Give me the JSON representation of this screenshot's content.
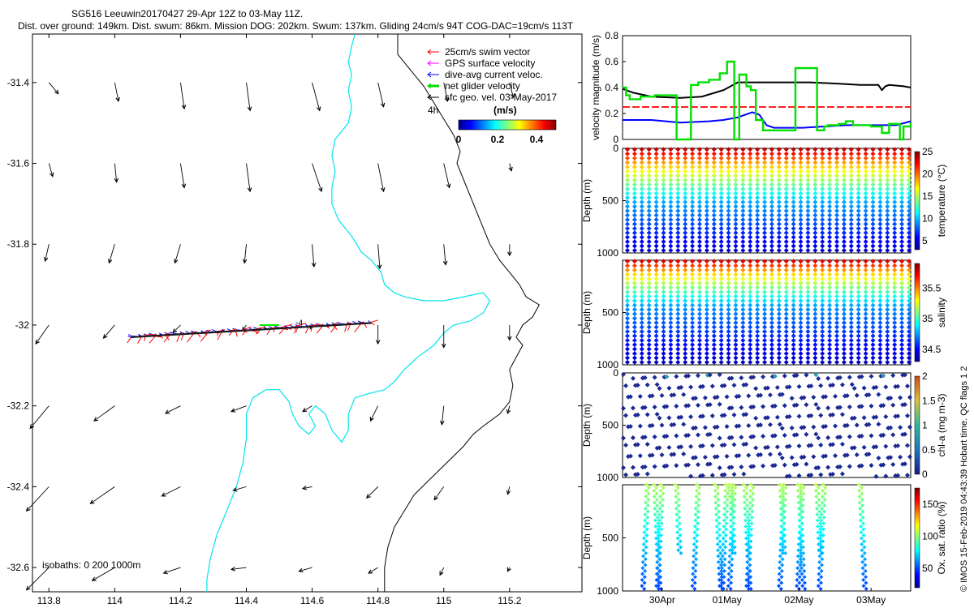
{
  "header": {
    "title": "SG516 Leeuwin20170427 29-Apr 12Z to 03-May 11Z.",
    "subtitle": "Dist. over ground: 149km. Dist. swum: 86km. Mission DOG: 202km. Swum: 137km. Gliding 24cm/s 94T COG-DAC=19cm/s 113T"
  },
  "credit": "© IMOS 15-Feb-2019 04:43:39 Hobart time. QC flags 1  2",
  "colors": {
    "swim": "#ff0000",
    "gps": "#ff00ff",
    "dac": "#0000ff",
    "net": "#00ee00",
    "sfc": "#000000",
    "isobath_200": "#00e5ee",
    "isobath_1000": "#000000"
  },
  "chart_data": [
    {
      "id": "map",
      "type": "quiver-map",
      "xlim": [
        113.75,
        115.42
      ],
      "ylim": [
        -32.66,
        -31.28
      ],
      "xticks": [
        "113.8",
        "114",
        "114.2",
        "114.4",
        "114.6",
        "114.8",
        "115",
        "115.2"
      ],
      "yticks": [
        "-31.4",
        "-31.6",
        "-31.8",
        "-32",
        "-32.2",
        "-32.4",
        "-32.6"
      ],
      "legend": {
        "position": "top-right",
        "items": [
          {
            "label": "25cm/s swim vector",
            "color": "#ff0000",
            "width": 1
          },
          {
            "label": "GPS surface velocity",
            "color": "#ff00ff",
            "width": 1
          },
          {
            "label": "dive-avg current veloc.",
            "color": "#0000ff",
            "width": 1
          },
          {
            "label": "net glider velocity",
            "color": "#00dd00",
            "width": 3
          },
          {
            "label": "sfc geo. vel. 03-May-2017",
            "color": "#000000",
            "width": 1
          }
        ],
        "interval": "4h",
        "colorbar_label": "(m/s)",
        "colorbar_ticks": [
          "0",
          "0.2",
          "0.4"
        ]
      },
      "isobaths_label": "isobaths: 0   200  1000m",
      "sfc_vectors": [
        {
          "lon": 113.8,
          "lat": -31.4,
          "u": 0.05,
          "v": -0.06
        },
        {
          "lon": 114.0,
          "lat": -31.4,
          "u": 0.02,
          "v": -0.1
        },
        {
          "lon": 114.2,
          "lat": -31.4,
          "u": 0.02,
          "v": -0.14
        },
        {
          "lon": 114.4,
          "lat": -31.4,
          "u": 0.02,
          "v": -0.15
        },
        {
          "lon": 114.6,
          "lat": -31.4,
          "u": 0.04,
          "v": -0.15
        },
        {
          "lon": 114.8,
          "lat": -31.4,
          "u": 0.03,
          "v": -0.13
        },
        {
          "lon": 115.0,
          "lat": -31.4,
          "u": 0.02,
          "v": -0.1
        },
        {
          "lon": 115.2,
          "lat": -31.4,
          "u": 0.02,
          "v": -0.08
        },
        {
          "lon": 113.8,
          "lat": -31.6,
          "u": 0.02,
          "v": -0.07
        },
        {
          "lon": 114.0,
          "lat": -31.6,
          "u": 0.01,
          "v": -0.1
        },
        {
          "lon": 114.2,
          "lat": -31.6,
          "u": 0.02,
          "v": -0.13
        },
        {
          "lon": 114.4,
          "lat": -31.6,
          "u": 0.02,
          "v": -0.15
        },
        {
          "lon": 114.6,
          "lat": -31.6,
          "u": 0.05,
          "v": -0.15
        },
        {
          "lon": 114.8,
          "lat": -31.6,
          "u": 0.03,
          "v": -0.15
        },
        {
          "lon": 115.0,
          "lat": -31.6,
          "u": 0.03,
          "v": -0.13
        },
        {
          "lon": 115.2,
          "lat": -31.6,
          "u": 0.01,
          "v": -0.04
        },
        {
          "lon": 113.8,
          "lat": -31.8,
          "u": -0.02,
          "v": -0.09
        },
        {
          "lon": 114.0,
          "lat": -31.8,
          "u": -0.03,
          "v": -0.1
        },
        {
          "lon": 114.2,
          "lat": -31.8,
          "u": -0.03,
          "v": -0.1
        },
        {
          "lon": 114.4,
          "lat": -31.8,
          "u": -0.01,
          "v": -0.1
        },
        {
          "lon": 114.6,
          "lat": -31.8,
          "u": 0.01,
          "v": -0.12
        },
        {
          "lon": 114.8,
          "lat": -31.8,
          "u": 0.01,
          "v": -0.13
        },
        {
          "lon": 115.0,
          "lat": -31.8,
          "u": 0.01,
          "v": -0.11
        },
        {
          "lon": 115.2,
          "lat": -31.8,
          "u": 0.0,
          "v": -0.06
        },
        {
          "lon": 113.8,
          "lat": -32.0,
          "u": -0.07,
          "v": -0.1
        },
        {
          "lon": 114.0,
          "lat": -32.0,
          "u": -0.06,
          "v": -0.07
        },
        {
          "lon": 114.2,
          "lat": -32.0,
          "u": -0.04,
          "v": -0.04
        },
        {
          "lon": 114.4,
          "lat": -32.0,
          "u": -0.02,
          "v": -0.03
        },
        {
          "lon": 114.6,
          "lat": -32.0,
          "u": -0.01,
          "v": -0.02
        },
        {
          "lon": 114.8,
          "lat": -32.0,
          "u": 0.0,
          "v": -0.1
        },
        {
          "lon": 115.0,
          "lat": -32.0,
          "u": 0.0,
          "v": -0.12
        },
        {
          "lon": 115.2,
          "lat": -32.0,
          "u": 0.0,
          "v": -0.08
        },
        {
          "lon": 113.8,
          "lat": -32.2,
          "u": -0.1,
          "v": -0.12
        },
        {
          "lon": 114.0,
          "lat": -32.2,
          "u": -0.11,
          "v": -0.08
        },
        {
          "lon": 114.2,
          "lat": -32.2,
          "u": -0.08,
          "v": -0.04
        },
        {
          "lon": 114.4,
          "lat": -32.2,
          "u": -0.08,
          "v": -0.03
        },
        {
          "lon": 114.6,
          "lat": -32.2,
          "u": -0.05,
          "v": -0.03
        },
        {
          "lon": 114.8,
          "lat": -32.2,
          "u": -0.04,
          "v": -0.08
        },
        {
          "lon": 115.0,
          "lat": -32.2,
          "u": -0.01,
          "v": -0.1
        },
        {
          "lon": 115.2,
          "lat": -32.2,
          "u": -0.01,
          "v": -0.04
        },
        {
          "lon": 113.8,
          "lat": -32.4,
          "u": -0.12,
          "v": -0.13
        },
        {
          "lon": 114.0,
          "lat": -32.4,
          "u": -0.13,
          "v": -0.09
        },
        {
          "lon": 114.2,
          "lat": -32.4,
          "u": -0.1,
          "v": -0.05
        },
        {
          "lon": 114.4,
          "lat": -32.4,
          "u": -0.07,
          "v": -0.02
        },
        {
          "lon": 114.6,
          "lat": -32.4,
          "u": -0.05,
          "v": -0.01
        },
        {
          "lon": 114.8,
          "lat": -32.4,
          "u": -0.06,
          "v": -0.06
        },
        {
          "lon": 115.0,
          "lat": -32.4,
          "u": -0.05,
          "v": -0.07
        },
        {
          "lon": 115.2,
          "lat": -32.4,
          "u": -0.01,
          "v": -0.04
        },
        {
          "lon": 113.8,
          "lat": -32.6,
          "u": -0.12,
          "v": -0.12
        },
        {
          "lon": 114.0,
          "lat": -32.6,
          "u": -0.12,
          "v": -0.07
        },
        {
          "lon": 114.2,
          "lat": -32.6,
          "u": -0.09,
          "v": -0.03
        },
        {
          "lon": 114.4,
          "lat": -32.6,
          "u": -0.08,
          "v": -0.01
        },
        {
          "lon": 114.6,
          "lat": -32.6,
          "u": -0.07,
          "v": -0.02
        },
        {
          "lon": 114.8,
          "lat": -32.6,
          "u": -0.05,
          "v": -0.03
        },
        {
          "lon": 115.0,
          "lat": -32.6,
          "u": -0.02,
          "v": -0.04
        },
        {
          "lon": 115.2,
          "lat": -32.6,
          "u": -0.01,
          "v": -0.02
        }
      ],
      "track": {
        "start_lon": 114.78,
        "end_lon": 114.05,
        "lat_start": -31.995,
        "lat_end": -32.03,
        "label": "-4"
      },
      "isobath_200": [
        [
          114.73,
          -31.28
        ],
        [
          114.72,
          -31.31
        ],
        [
          114.71,
          -31.35
        ],
        [
          114.72,
          -31.38
        ],
        [
          114.71,
          -31.42
        ],
        [
          114.72,
          -31.46
        ],
        [
          114.71,
          -31.5
        ],
        [
          114.67,
          -31.54
        ],
        [
          114.66,
          -31.58
        ],
        [
          114.67,
          -31.62
        ],
        [
          114.66,
          -31.66
        ],
        [
          114.66,
          -31.7
        ],
        [
          114.68,
          -31.74
        ],
        [
          114.72,
          -31.78
        ],
        [
          114.75,
          -31.82
        ],
        [
          114.78,
          -31.84
        ],
        [
          114.81,
          -31.87
        ],
        [
          114.82,
          -31.9
        ],
        [
          114.85,
          -31.92
        ],
        [
          114.88,
          -31.93
        ],
        [
          114.94,
          -31.94
        ],
        [
          115.0,
          -31.94
        ],
        [
          115.06,
          -31.93
        ],
        [
          115.12,
          -31.92
        ],
        [
          115.14,
          -31.94
        ],
        [
          115.12,
          -31.97
        ],
        [
          115.08,
          -31.99
        ],
        [
          115.03,
          -32.0
        ],
        [
          115.0,
          -32.02
        ],
        [
          114.97,
          -32.05
        ],
        [
          114.92,
          -32.08
        ],
        [
          114.88,
          -32.11
        ],
        [
          114.85,
          -32.14
        ],
        [
          114.82,
          -32.16
        ],
        [
          114.77,
          -32.17
        ],
        [
          114.73,
          -32.18
        ],
        [
          114.71,
          -32.22
        ],
        [
          114.71,
          -32.26
        ],
        [
          114.69,
          -32.29
        ],
        [
          114.66,
          -32.26
        ],
        [
          114.64,
          -32.22
        ],
        [
          114.61,
          -32.2
        ],
        [
          114.59,
          -32.22
        ],
        [
          114.61,
          -32.25
        ],
        [
          114.59,
          -32.27
        ],
        [
          114.56,
          -32.25
        ],
        [
          114.54,
          -32.22
        ],
        [
          114.53,
          -32.19
        ],
        [
          114.5,
          -32.16
        ],
        [
          114.46,
          -32.16
        ],
        [
          114.42,
          -32.18
        ],
        [
          114.4,
          -32.22
        ],
        [
          114.4,
          -32.28
        ],
        [
          114.39,
          -32.34
        ],
        [
          114.37,
          -32.4
        ],
        [
          114.34,
          -32.46
        ],
        [
          114.31,
          -32.52
        ],
        [
          114.29,
          -32.58
        ],
        [
          114.28,
          -32.63
        ],
        [
          114.28,
          -32.66
        ]
      ],
      "isobath_1000": [
        [
          114.86,
          -31.28
        ],
        [
          114.86,
          -31.33
        ],
        [
          114.9,
          -31.37
        ],
        [
          114.94,
          -31.41
        ],
        [
          114.97,
          -31.45
        ],
        [
          115.0,
          -31.49
        ],
        [
          115.03,
          -31.53
        ],
        [
          115.05,
          -31.57
        ],
        [
          115.04,
          -31.6
        ],
        [
          115.06,
          -31.64
        ],
        [
          115.08,
          -31.68
        ],
        [
          115.1,
          -31.72
        ],
        [
          115.12,
          -31.76
        ],
        [
          115.14,
          -31.8
        ],
        [
          115.17,
          -31.84
        ],
        [
          115.2,
          -31.87
        ],
        [
          115.23,
          -31.9
        ],
        [
          115.25,
          -31.93
        ],
        [
          115.29,
          -31.95
        ],
        [
          115.27,
          -31.98
        ],
        [
          115.24,
          -32.0
        ],
        [
          115.22,
          -32.03
        ],
        [
          115.24,
          -32.05
        ],
        [
          115.22,
          -32.08
        ],
        [
          115.2,
          -32.11
        ],
        [
          115.21,
          -32.15
        ],
        [
          115.2,
          -32.19
        ],
        [
          115.17,
          -32.22
        ],
        [
          115.12,
          -32.25
        ],
        [
          115.09,
          -32.27
        ],
        [
          115.06,
          -32.3
        ],
        [
          115.01,
          -32.34
        ],
        [
          114.96,
          -32.38
        ],
        [
          114.91,
          -32.42
        ],
        [
          114.88,
          -32.46
        ],
        [
          114.85,
          -32.5
        ],
        [
          114.83,
          -32.55
        ],
        [
          114.82,
          -32.6
        ],
        [
          114.82,
          -32.66
        ]
      ]
    },
    {
      "id": "velocity",
      "type": "line",
      "ylabel": "velocity magnitude (m/s)",
      "ylim": [
        0,
        0.8
      ],
      "yticks": [
        "0",
        "0.2",
        "0.4",
        "0.6",
        "0.8"
      ],
      "x_days": [
        0,
        4.0
      ],
      "series": [
        {
          "name": "sfc geo. vel.",
          "color": "#000000",
          "x": [
            0,
            0.15,
            0.4,
            0.8,
            1.1,
            1.4,
            1.6,
            1.8,
            2.2,
            2.6,
            3.0,
            3.3,
            3.55,
            3.6,
            3.65,
            3.7,
            3.9,
            4.0
          ],
          "y": [
            0.39,
            0.36,
            0.33,
            0.32,
            0.33,
            0.38,
            0.44,
            0.44,
            0.44,
            0.44,
            0.43,
            0.42,
            0.42,
            0.38,
            0.41,
            0.42,
            0.41,
            0.4
          ]
        },
        {
          "name": "dive-avg current veloc.",
          "color": "#0000ff",
          "x": [
            0,
            0.4,
            0.8,
            1.2,
            1.4,
            1.6,
            1.8,
            1.9,
            2.0,
            2.1,
            2.5,
            2.8,
            3.1,
            3.5,
            3.8,
            4.0
          ],
          "y": [
            0.15,
            0.15,
            0.13,
            0.14,
            0.15,
            0.17,
            0.21,
            0.19,
            0.11,
            0.09,
            0.09,
            0.1,
            0.11,
            0.11,
            0.11,
            0.14
          ]
        },
        {
          "name": "25cm/s swim vector",
          "color": "#ff0000",
          "dashed": true,
          "x": [
            0,
            4.0
          ],
          "y": [
            0.25,
            0.25
          ]
        },
        {
          "name": "net glider velocity",
          "color": "#00e000",
          "step": true,
          "x": [
            0,
            0.05,
            0.1,
            0.25,
            0.45,
            0.75,
            0.95,
            1.05,
            1.2,
            1.35,
            1.45,
            1.55,
            1.62,
            1.72,
            1.78,
            1.85,
            1.95,
            2.0,
            2.2,
            2.4,
            2.7,
            2.8,
            2.85,
            3.0,
            3.1,
            3.2,
            3.3,
            3.45,
            3.6,
            3.7,
            3.8,
            3.85,
            3.9,
            4.0
          ],
          "y": [
            0.4,
            0.34,
            0.31,
            0.33,
            0.34,
            0.0,
            0.42,
            0.44,
            0.46,
            0.51,
            0.6,
            0.0,
            0.5,
            0.41,
            0.38,
            0.15,
            0.07,
            0.07,
            0.07,
            0.55,
            0.07,
            0.1,
            0.11,
            0.12,
            0.14,
            0.11,
            0.11,
            0.1,
            0.05,
            0.12,
            0.12,
            0.0,
            0.1,
            0.13
          ]
        }
      ]
    },
    {
      "id": "temperature",
      "type": "scatter",
      "ylabel": "Depth (m)",
      "clabel": "temperature (°C)",
      "ylim": [
        1000,
        0
      ],
      "yticks": [
        "0",
        "500",
        "1000"
      ],
      "clim": [
        3,
        25
      ],
      "cticks": [
        "5",
        "10",
        "15",
        "20",
        "25"
      ],
      "ndives": 40,
      "max_depth": 1000
    },
    {
      "id": "salinity",
      "type": "scatter",
      "ylabel": "Depth (m)",
      "clabel": "salinity",
      "ylim": [
        1000,
        0
      ],
      "yticks": [
        "500",
        "1000"
      ],
      "clim": [
        34.3,
        35.9
      ],
      "cticks": [
        "34.5",
        "35",
        "35.5"
      ],
      "ndives": 40,
      "max_depth": 1000
    },
    {
      "id": "chla",
      "type": "scatter",
      "ylabel": "Depth (m)",
      "clabel": "chl-a (mg m-3)",
      "ylim": [
        1000,
        0
      ],
      "yticks": [
        "0",
        "500",
        "1000"
      ],
      "clim": [
        0,
        2
      ],
      "cticks": [
        "0",
        "0.5",
        "1",
        "1.5",
        "2"
      ],
      "ndives": 40,
      "max_depth": 1000
    },
    {
      "id": "oxygen",
      "type": "scatter",
      "ylabel": "Depth (m)",
      "clabel": "Ox. sat. ratio (%)",
      "ylim": [
        1000,
        0
      ],
      "yticks": [
        "500",
        "1000"
      ],
      "clim": [
        20,
        175
      ],
      "cticks": [
        "50",
        "100",
        "150"
      ],
      "dives": [
        0.35,
        0.45,
        0.55,
        0.75,
        1.05,
        1.3,
        1.45,
        1.5,
        1.55,
        1.7,
        1.8,
        2.2,
        2.25,
        2.45,
        2.5,
        2.7,
        2.8,
        3.3
      ],
      "xticks": [
        "30Apr",
        "01May",
        "02May",
        "03May"
      ]
    }
  ]
}
